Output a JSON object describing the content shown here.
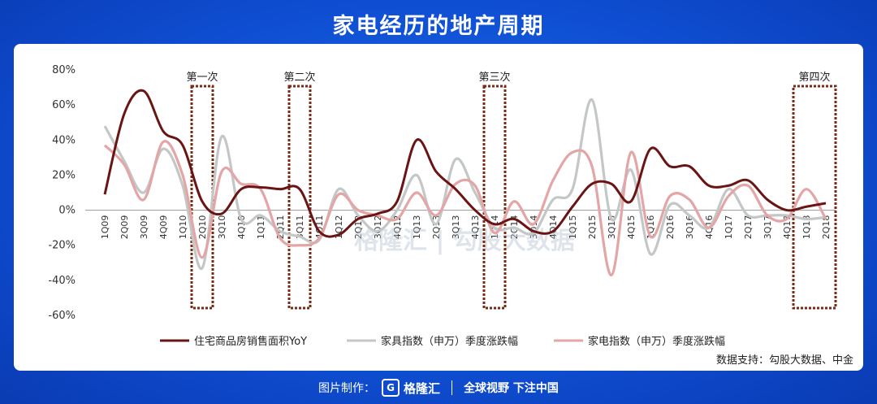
{
  "page": {
    "title": "家电经历的地产周期"
  },
  "footer": {
    "credit": "图片制作：",
    "logo_glyph": "G",
    "brand": "格隆汇",
    "slogan": "全球视野 下注中国"
  },
  "chart_data": {
    "type": "line",
    "title": "",
    "xlabel": "",
    "ylabel": "",
    "ylim": [
      -60,
      80
    ],
    "yticks": [
      "80%",
      "60%",
      "40%",
      "20%",
      "0%",
      "-20%",
      "-40%",
      "-60%"
    ],
    "grid": false,
    "legend_position": "bottom",
    "source": "数据支持：勾股大数据、中金",
    "watermark": "格隆汇 | 勾股大数据",
    "categories": [
      "1Q09",
      "2Q09",
      "3Q09",
      "4Q09",
      "1Q10",
      "2Q10",
      "3Q10",
      "4Q10",
      "1Q11",
      "2Q11",
      "3Q11",
      "4Q11",
      "1Q12",
      "2Q12",
      "3Q12",
      "4Q12",
      "1Q13",
      "2Q13",
      "3Q13",
      "4Q13",
      "1Q14",
      "2Q14",
      "3Q14",
      "4Q14",
      "1Q15",
      "2Q15",
      "3Q15",
      "4Q15",
      "1Q16",
      "2Q16",
      "3Q16",
      "4Q16",
      "1Q17",
      "2Q17",
      "3Q17",
      "4Q17",
      "1Q18",
      "2Q18"
    ],
    "series": [
      {
        "name": "住宅商品房销售面积YoY",
        "color": "#6b1414",
        "values": [
          9,
          55,
          68,
          45,
          37,
          5,
          -2,
          12,
          13,
          12,
          12,
          -12,
          -14,
          -5,
          -2,
          5,
          40,
          22,
          12,
          0,
          -8,
          -5,
          -12,
          -12,
          2,
          15,
          15,
          5,
          35,
          25,
          25,
          14,
          14,
          17,
          6,
          0,
          2,
          4
        ]
      },
      {
        "name": "家具指数（申万）季度涨跌幅",
        "color": "#c3c7c5",
        "values": [
          48,
          28,
          10,
          35,
          14,
          -33,
          42,
          -5,
          -3,
          -12,
          -15,
          -17,
          12,
          -3,
          -12,
          0,
          20,
          -8,
          29,
          10,
          -10,
          -10,
          -13,
          6,
          12,
          63,
          -5,
          23,
          -25,
          3,
          -3,
          -10,
          12,
          -3,
          -3,
          -3,
          -5,
          -4
        ]
      },
      {
        "name": "家电指数（申万）季度涨跌幅",
        "color": "#e3a5a6",
        "values": [
          37,
          26,
          6,
          39,
          20,
          -27,
          22,
          15,
          12,
          -16,
          -20,
          -16,
          9,
          0,
          -3,
          -5,
          10,
          -3,
          15,
          14,
          -13,
          5,
          -8,
          17,
          33,
          25,
          -37,
          33,
          -15,
          8,
          6,
          -10,
          8,
          14,
          -3,
          -5,
          12,
          -5
        ]
      }
    ],
    "cycle_highlights": [
      {
        "label": "第一次",
        "category": "2Q10"
      },
      {
        "label": "第二次",
        "category": "3Q11"
      },
      {
        "label": "第三次",
        "category": "1Q14"
      },
      {
        "label": "第四次",
        "category": "2Q18"
      }
    ]
  }
}
